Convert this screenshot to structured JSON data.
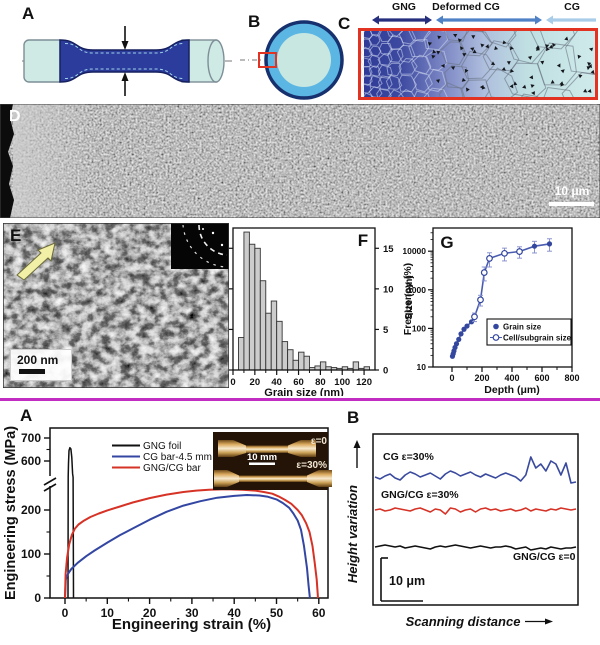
{
  "divider_color": "#c32cc3",
  "top": {
    "a_label": "A",
    "b_label": "B",
    "c_label": "C",
    "zones": [
      {
        "label": "GNG",
        "color": "#252f7d",
        "style": "double"
      },
      {
        "label": "Deformed CG",
        "color": "#4f81c7",
        "style": "double"
      },
      {
        "label": "CG",
        "color": "#a9cce9",
        "style": "left"
      }
    ],
    "specimen_colors": {
      "grip": "#cfe9e5",
      "gauge": "#2c3c9c",
      "outline": "#16205f"
    },
    "cross_section_colors": {
      "ring": "#5cb6e4",
      "core": "#c7e7e0",
      "outline": "#17306e",
      "roi_box": "#e23322"
    }
  },
  "panel_d": {
    "label": "D",
    "scale_bar": "10 μm"
  },
  "panel_e": {
    "label": "E",
    "scale_bar": "200 nm"
  },
  "chart_data": [
    {
      "id": "grain-size-histogram",
      "panel_label": "F",
      "type": "bar",
      "xlabel": "Grain size (nm)",
      "ylabel": "Frequency (%)",
      "ylabel_side": "right",
      "xlim": [
        0,
        130
      ],
      "ylim": [
        0,
        17.5
      ],
      "xticks": [
        0,
        20,
        40,
        60,
        80,
        100,
        120
      ],
      "xminors": [
        10,
        30,
        50,
        70,
        90,
        110
      ],
      "yticks": [
        0,
        5,
        10,
        15
      ],
      "bin_start": 5,
      "bin_width": 5,
      "values": [
        4,
        17,
        15.5,
        15,
        11,
        7,
        8.5,
        6,
        3.5,
        2.5,
        1.2,
        2.2,
        1.7,
        0.3,
        0.5,
        1,
        0.4,
        0.3,
        0.2,
        0.4,
        0.2,
        1,
        0.2,
        0.4
      ],
      "bar_color": "#cccccc"
    },
    {
      "id": "size-vs-depth",
      "panel_label": "G",
      "type": "line",
      "yscale": "log",
      "xlabel": "Depth (μm)",
      "ylabel": "Size (nm)",
      "xticks": [
        0,
        200,
        400,
        600,
        800
      ],
      "xminors": [
        100,
        300,
        500,
        700
      ],
      "yticks": [
        10,
        100,
        1000,
        10000
      ],
      "ylim": [
        10,
        45000
      ],
      "line_color": "#4a5cb0",
      "marker_color": "#34479e",
      "error_color": "#8a93cf",
      "series": [
        {
          "name": "Grain size",
          "marker": "filled",
          "points": [
            [
              3,
              19
            ],
            [
              8,
              22
            ],
            [
              13,
              26
            ],
            [
              20,
              32
            ],
            [
              30,
              40
            ],
            [
              45,
              52
            ],
            [
              60,
              72
            ],
            [
              80,
              95
            ],
            [
              100,
              115
            ],
            [
              130,
              148
            ],
            [
              550,
              13500
            ],
            [
              650,
              15500
            ]
          ],
          "yerr": [
            0,
            0,
            0,
            0,
            0,
            0,
            0,
            0,
            0,
            0,
            4500,
            5500
          ]
        },
        {
          "name": "Cell/subgrain size",
          "marker": "open",
          "points": [
            [
              150,
              200
            ],
            [
              190,
              550
            ],
            [
              215,
              2800
            ],
            [
              250,
              6500
            ],
            [
              350,
              8800
            ],
            [
              450,
              9800
            ]
          ],
          "yerr": [
            50,
            170,
            1100,
            2600,
            3200,
            3200
          ]
        }
      ],
      "legend": [
        {
          "label": "Grain size",
          "marker": "filled"
        },
        {
          "label": "Cell/subgrain size",
          "marker": "open"
        }
      ]
    },
    {
      "id": "stress-strain",
      "panel_label": "A",
      "type": "line",
      "xlabel": "Engineering strain (%)",
      "ylabel": "Engineering stress (MPa)",
      "xticks": [
        0,
        10,
        20,
        30,
        40,
        50,
        60
      ],
      "xminors": [
        5,
        15,
        25,
        35,
        45,
        55
      ],
      "yticks_lower": [
        0,
        100,
        200
      ],
      "yticks_upper": [
        600,
        700
      ],
      "yminors_lower": [
        50,
        150
      ],
      "yminors_upper": [
        650
      ],
      "axis_break": true,
      "series": [
        {
          "name": "GNG foil",
          "color": "#111111",
          "points": [
            [
              0.7,
              0
            ],
            [
              0.75,
              480
            ],
            [
              0.82,
              590
            ],
            [
              0.95,
              645
            ],
            [
              1.15,
              658
            ],
            [
              1.4,
              652
            ],
            [
              1.6,
              615
            ],
            [
              1.8,
              545
            ],
            [
              1.92,
              460
            ],
            [
              2.0,
              0
            ]
          ]
        },
        {
          "name": "CG bar-4.5 mm",
          "color": "#3346a2",
          "points": [
            [
              0,
              0
            ],
            [
              0.2,
              42
            ],
            [
              0.7,
              55
            ],
            [
              1.5,
              66
            ],
            [
              3,
              80
            ],
            [
              5,
              95
            ],
            [
              7,
              108
            ],
            [
              10,
              126
            ],
            [
              13,
              143
            ],
            [
              16,
              158
            ],
            [
              20,
              178
            ],
            [
              24,
              196
            ],
            [
              28,
              210
            ],
            [
              32,
              220
            ],
            [
              36,
              228
            ],
            [
              40,
              232
            ],
            [
              43,
              234
            ],
            [
              46,
              233
            ],
            [
              48,
              230
            ],
            [
              50,
              224
            ],
            [
              51.5,
              216
            ],
            [
              53,
              205
            ],
            [
              54,
              192
            ],
            [
              55,
              176
            ],
            [
              55.8,
              155
            ],
            [
              56.5,
              118
            ],
            [
              57.2,
              68
            ],
            [
              57.6,
              28
            ],
            [
              57.9,
              0
            ]
          ]
        },
        {
          "name": "GNG/CG bar",
          "color": "#d63226",
          "points": [
            [
              0,
              0
            ],
            [
              0.15,
              55
            ],
            [
              0.5,
              92
            ],
            [
              1,
              122
            ],
            [
              1.6,
              143
            ],
            [
              2.3,
              157
            ],
            [
              3.2,
              167
            ],
            [
              4.5,
              176
            ],
            [
              6,
              184
            ],
            [
              8,
              192
            ],
            [
              10,
              199
            ],
            [
              13,
              208
            ],
            [
              16,
              217
            ],
            [
              20,
              227
            ],
            [
              24,
              235
            ],
            [
              28,
              241
            ],
            [
              31,
              244
            ],
            [
              34,
              246
            ],
            [
              38,
              247
            ],
            [
              42,
              246
            ],
            [
              45,
              244
            ],
            [
              47,
              241
            ],
            [
              49,
              237
            ],
            [
              50.5,
              231
            ],
            [
              52,
              223
            ],
            [
              53.5,
              214
            ],
            [
              55,
              200
            ],
            [
              56,
              188
            ],
            [
              57,
              170
            ],
            [
              57.8,
              150
            ],
            [
              58.5,
              118
            ],
            [
              59,
              82
            ],
            [
              59.5,
              42
            ],
            [
              59.8,
              0
            ]
          ]
        }
      ],
      "legend": [
        {
          "label": "GNG foil",
          "color": "#111111"
        },
        {
          "label": "CG bar-4.5 mm",
          "color": "#3346a2"
        },
        {
          "label": "GNG/CG bar",
          "color": "#d63226"
        }
      ],
      "inset": {
        "labels": [
          "ε=0",
          "ε=30%"
        ],
        "scale_bar": "10 mm"
      }
    },
    {
      "id": "height-variation",
      "panel_label": "B",
      "type": "line",
      "xlabel": "Scanning distance",
      "ylabel": "Height variation",
      "scale_label": "10 μm",
      "traces": [
        {
          "label": "CG ε=30%",
          "color": "#3a4a9e",
          "baseline": 75,
          "values": [
            0,
            -2,
            1,
            3,
            -1,
            -3,
            2,
            5,
            3,
            0,
            2,
            4,
            1,
            -2,
            3,
            6,
            4,
            1,
            3,
            5,
            2,
            0,
            3,
            1,
            -1,
            2,
            4,
            2,
            0,
            -4,
            2,
            20,
            9,
            13,
            6,
            16,
            13,
            2,
            14,
            -6,
            -5
          ]
        },
        {
          "label": "GNG/CG ε=30%",
          "color": "#d63226",
          "baseline": 108,
          "values": [
            0,
            1,
            -1,
            0,
            2,
            1,
            0,
            -1,
            1,
            2,
            0,
            -2,
            1,
            0,
            -4,
            2,
            1,
            -2,
            0,
            1,
            -2,
            1,
            2,
            0,
            1,
            -1,
            0,
            1,
            -1,
            0,
            2,
            -1,
            1,
            0,
            -1,
            1,
            0,
            2,
            1,
            0,
            1
          ]
        },
        {
          "label": "GNG/CG ε=0",
          "color": "#111111",
          "baseline": 145,
          "values": [
            0,
            1,
            2,
            1,
            0,
            1,
            -1,
            0,
            1,
            0,
            -1,
            -2,
            0,
            1,
            0,
            1,
            2,
            1,
            0,
            -1,
            0,
            1,
            0,
            -1,
            0,
            0,
            1,
            0,
            -2,
            -1,
            0,
            -3,
            -2,
            -1,
            -2,
            0,
            -1,
            -2,
            -1,
            -1,
            0
          ]
        }
      ]
    }
  ]
}
